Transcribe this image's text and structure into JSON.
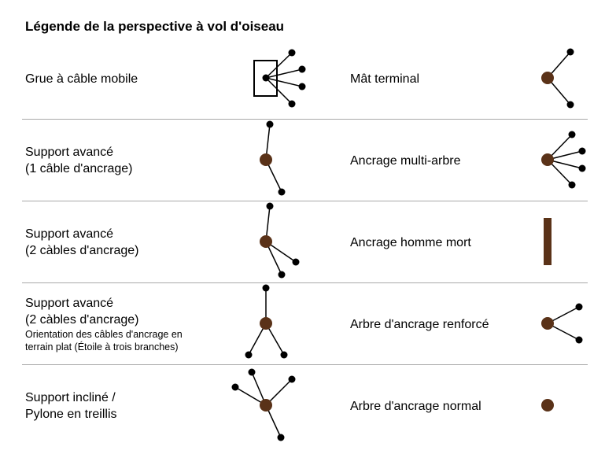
{
  "title": "Légende de la perspective à vol d'oiseau",
  "colors": {
    "symbol_node": "#5a3218",
    "line": "#000000",
    "separator": "#a9a9a9"
  },
  "rows": [
    {
      "left": {
        "line1": "Grue à câble mobile",
        "symbol": "mobile-cable-crane-icon"
      },
      "right": {
        "line1": "Mât terminal",
        "symbol": "terminal-mast-icon"
      }
    },
    {
      "left": {
        "line1": "Support avancé",
        "line2": "(1 câble d'ancrage)",
        "symbol": "advanced-support-1-cable-icon"
      },
      "right": {
        "line1": "Ancrage multi-arbre",
        "symbol": "multi-tree-anchor-icon"
      }
    },
    {
      "left": {
        "line1": "Support avancé",
        "line2": "(2 càbles d'ancrage)",
        "symbol": "advanced-support-2-cables-icon"
      },
      "right": {
        "line1": "Ancrage homme mort",
        "symbol": "deadman-anchor-icon"
      }
    },
    {
      "left": {
        "line1": "Support avancé",
        "line2": "(2 càbles d'ancrage)",
        "note1": "Orientation des câbles d'ancrage en",
        "note2": "terrain plat (Étoile à trois branches)",
        "symbol": "advanced-support-flat-terrain-icon"
      },
      "right": {
        "line1": "Arbre d'ancrage renforcé",
        "symbol": "reinforced-anchor-tree-icon"
      }
    },
    {
      "left": {
        "line1": "Support incliné /",
        "line2": "Pylone en treillis",
        "symbol": "inclined-support-lattice-pylon-icon"
      },
      "right": {
        "line1": "Arbre d'ancrage normal",
        "symbol": "normal-anchor-tree-icon"
      }
    }
  ]
}
